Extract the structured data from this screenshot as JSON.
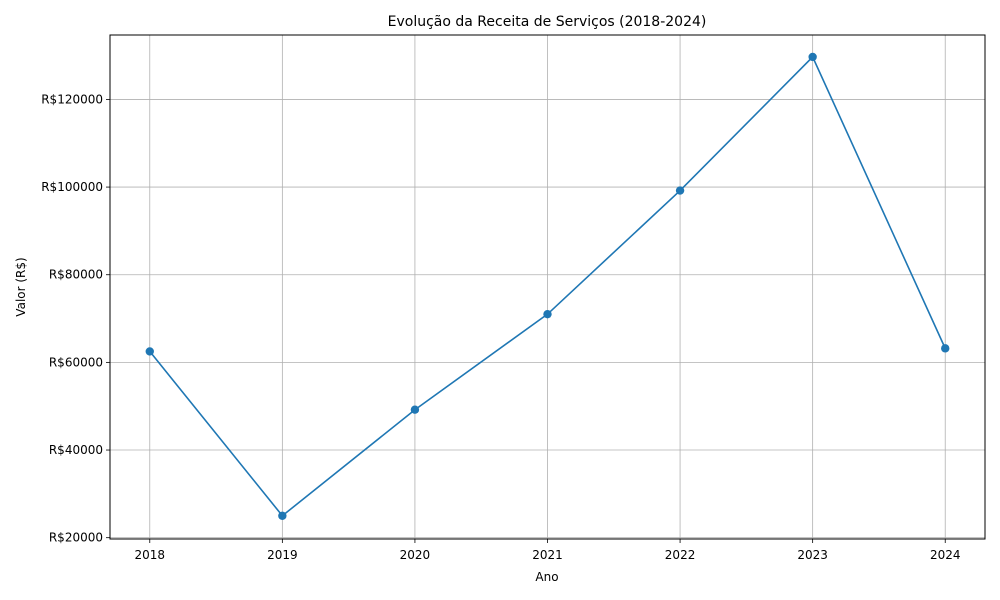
{
  "chart_data": {
    "type": "line",
    "title": "Evolução da Receita de Serviços (2018-2024)",
    "xlabel": "Ano",
    "ylabel": "Valor (R$)",
    "x": [
      "2018",
      "2019",
      "2020",
      "2021",
      "2022",
      "2023",
      "2024"
    ],
    "series": [
      {
        "values": [
          62500,
          25000,
          49200,
          71000,
          99200,
          129700,
          63200
        ]
      }
    ],
    "xlim": [
      2017.7,
      2024.3
    ],
    "ylim": [
      19700,
      134700
    ],
    "yticks": [
      20000,
      40000,
      60000,
      80000,
      100000,
      120000
    ],
    "ytick_labels": [
      "R$20000",
      "R$40000",
      "R$60000",
      "R$80000",
      "R$100000",
      "R$120000"
    ],
    "grid": true,
    "line_color": "#1f77b4",
    "grid_color": "#b0b0b0"
  }
}
